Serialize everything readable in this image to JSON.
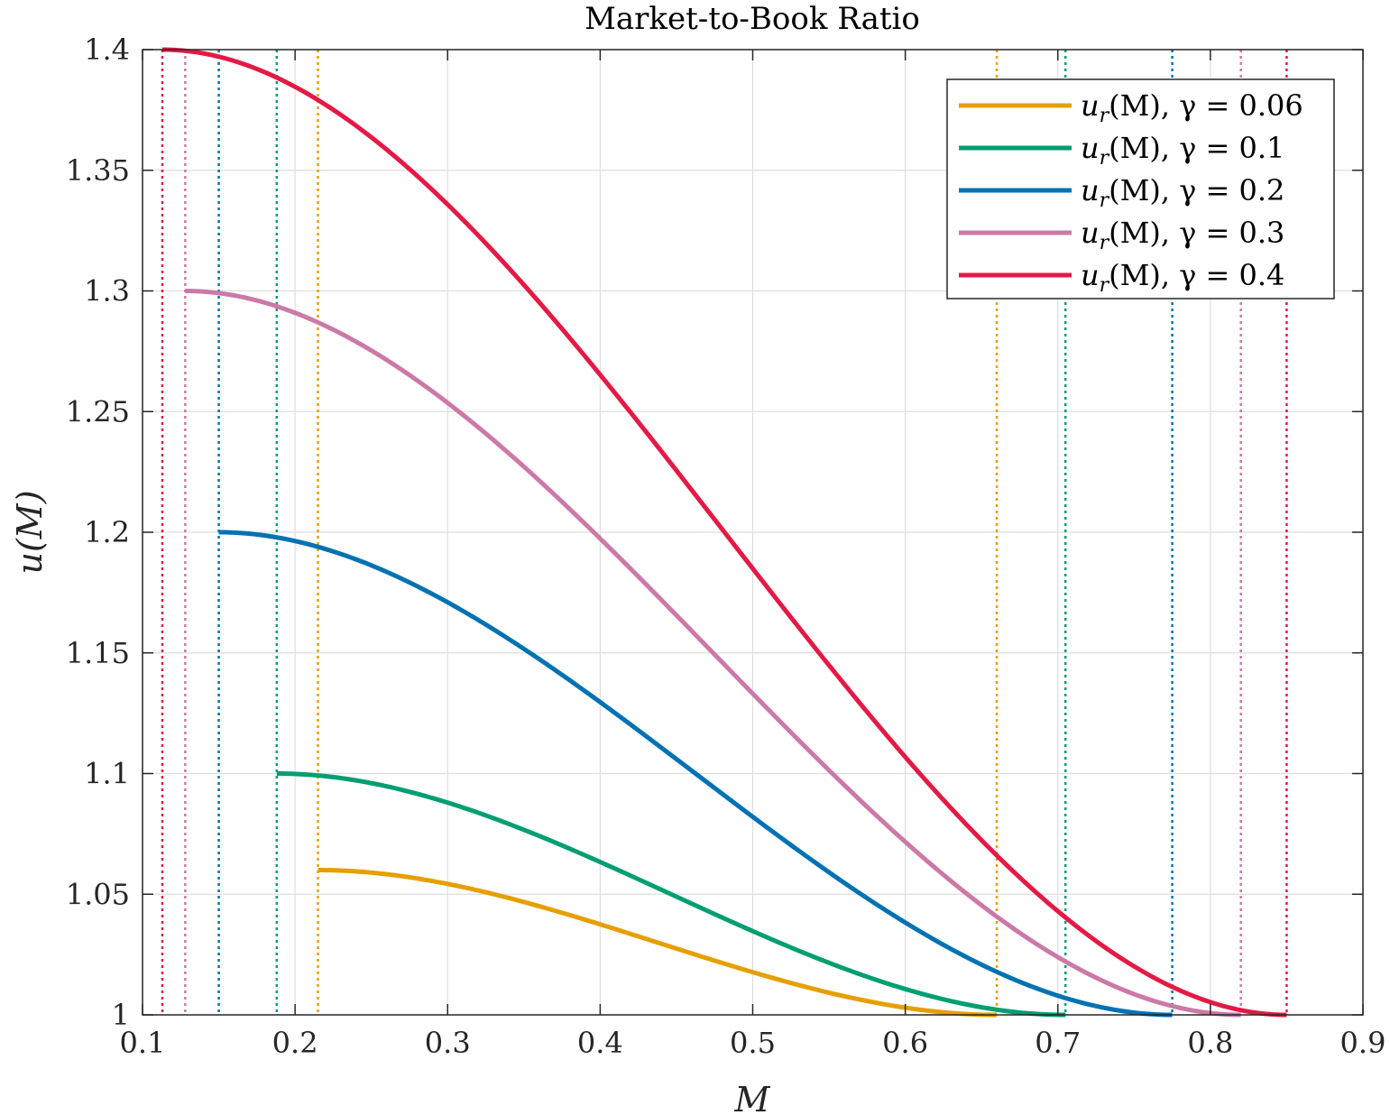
{
  "chart_data": {
    "type": "line",
    "title": "Market-to-Book Ratio",
    "xlabel": "M",
    "ylabel": "u(M)",
    "xlim": [
      0.1,
      0.9
    ],
    "ylim": [
      1.0,
      1.4
    ],
    "xticks": [
      0.1,
      0.2,
      0.3,
      0.4,
      0.5,
      0.6,
      0.7,
      0.8,
      0.9
    ],
    "xtick_labels": [
      "0.1",
      "0.2",
      "0.3",
      "0.4",
      "0.5",
      "0.6",
      "0.7",
      "0.8",
      "0.9"
    ],
    "yticks": [
      1.0,
      1.05,
      1.1,
      1.15,
      1.2,
      1.25,
      1.3,
      1.35,
      1.4
    ],
    "ytick_labels": [
      "1",
      "1.05",
      "1.1",
      "1.15",
      "1.2",
      "1.25",
      "1.3",
      "1.35",
      "1.4"
    ],
    "grid": true,
    "legend_position": "top-right",
    "series": [
      {
        "name": "u_r(M), γ = 0.06",
        "label_main": "u",
        "label_sub": "r",
        "label_rest": "(M),  γ = 0.06",
        "color": "#E69F00",
        "x_start": 0.215,
        "x_end": 0.66,
        "y_start": 1.06,
        "vlines": [
          0.215,
          0.66
        ]
      },
      {
        "name": "u_r(M), γ = 0.1",
        "label_main": "u",
        "label_sub": "r",
        "label_rest": "(M),  γ = 0.1",
        "color": "#009E73",
        "x_start": 0.188,
        "x_end": 0.705,
        "y_start": 1.1,
        "vlines": [
          0.188,
          0.705
        ]
      },
      {
        "name": "u_r(M), γ = 0.2",
        "label_main": "u",
        "label_sub": "r",
        "label_rest": "(M),  γ = 0.2",
        "color": "#0072B2",
        "x_start": 0.15,
        "x_end": 0.775,
        "y_start": 1.2,
        "vlines": [
          0.15,
          0.775
        ]
      },
      {
        "name": "u_r(M), γ = 0.3",
        "label_main": "u",
        "label_sub": "r",
        "label_rest": "(M),  γ = 0.3",
        "color": "#CC79A7",
        "x_start": 0.128,
        "x_end": 0.82,
        "y_start": 1.3,
        "vlines": [
          0.128,
          0.82
        ]
      },
      {
        "name": "u_r(M), γ = 0.4",
        "label_main": "u",
        "label_sub": "r",
        "label_rest": "(M),  γ = 0.4",
        "color": "#E31A45",
        "x_start": 0.113,
        "x_end": 0.85,
        "y_start": 1.4,
        "vlines": [
          0.113,
          0.85
        ]
      }
    ]
  }
}
